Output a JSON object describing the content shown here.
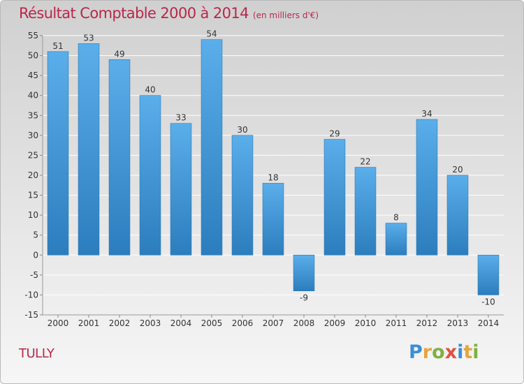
{
  "page": {
    "title": "Résultat Comptable 2000 à 2014",
    "subtitle": "(en milliers d'€)",
    "town": "TULLY",
    "logo": [
      "P",
      "r",
      "o",
      "x",
      "i",
      "t",
      "i"
    ]
  },
  "colors": {
    "title": "#b8284a",
    "bar_light": "#5aaeea",
    "bar_dark": "#2c7dbd",
    "grid": "#ffffff",
    "axis_text": "#333333"
  },
  "chart_data": {
    "type": "bar",
    "title": "Résultat Comptable 2000 à 2014",
    "subtitle": "(en milliers d'€)",
    "xlabel": "",
    "ylabel": "",
    "categories": [
      "2000",
      "2001",
      "2002",
      "2003",
      "2004",
      "2005",
      "2006",
      "2007",
      "2008",
      "2009",
      "2010",
      "2011",
      "2012",
      "2013",
      "2014"
    ],
    "values": [
      51,
      53,
      49,
      40,
      33,
      54,
      30,
      18,
      -9,
      29,
      22,
      8,
      34,
      20,
      -10
    ],
    "ylim": [
      -15,
      55
    ],
    "yticks": [
      -15,
      -10,
      -5,
      0,
      5,
      10,
      15,
      20,
      25,
      30,
      35,
      40,
      45,
      50,
      55
    ],
    "grid": true,
    "legend": "none"
  }
}
